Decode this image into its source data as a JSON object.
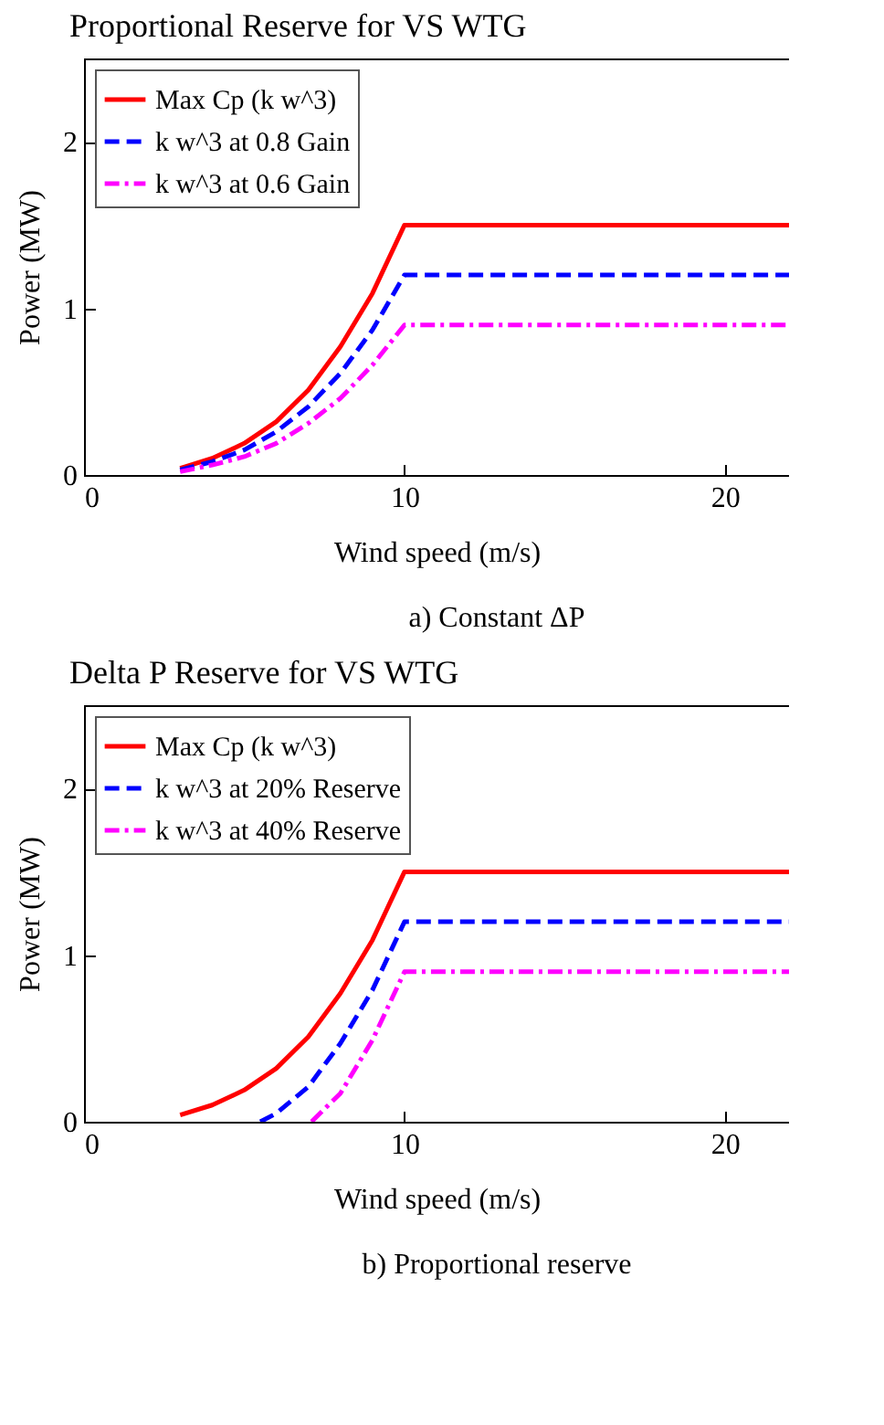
{
  "chart_data": [
    {
      "type": "line",
      "title": "Proportional Reserve for VS WTG",
      "xlabel": "Wind speed (m/s)",
      "ylabel": "Power (MW)",
      "annotations": [
        "a) Constant ΔP"
      ],
      "xlim": [
        0,
        22
      ],
      "ylim": [
        0,
        2.5
      ],
      "xticks": [
        0,
        10,
        20
      ],
      "yticks": [
        0,
        1,
        2
      ],
      "grid": false,
      "legend": "top left",
      "marker": "none",
      "series": [
        {
          "name": "Max Cp (k w^3)",
          "color": "#ff0000",
          "line_style": "solid",
          "x": [
            3,
            4,
            5,
            6,
            7,
            8,
            9,
            10,
            22
          ],
          "values": [
            0.04,
            0.1,
            0.19,
            0.32,
            0.51,
            0.77,
            1.09,
            1.5,
            1.5
          ]
        },
        {
          "name": "k w^3 at 0.8 Gain",
          "color": "#0000ff",
          "line_style": "dashed",
          "x": [
            3,
            4,
            5,
            6,
            7,
            8,
            9,
            10,
            22
          ],
          "values": [
            0.03,
            0.08,
            0.15,
            0.26,
            0.41,
            0.61,
            0.87,
            1.2,
            1.2
          ]
        },
        {
          "name": "k w^3 at 0.6 Gain",
          "color": "#ff00ff",
          "line_style": "dashdot",
          "x": [
            3,
            4,
            5,
            6,
            7,
            8,
            9,
            10,
            22
          ],
          "values": [
            0.02,
            0.06,
            0.11,
            0.19,
            0.31,
            0.46,
            0.66,
            0.9,
            0.9
          ]
        }
      ]
    },
    {
      "type": "line",
      "title": "Delta P Reserve for VS WTG",
      "xlabel": "Wind speed (m/s)",
      "ylabel": "Power (MW)",
      "annotations": [
        "b) Proportional reserve"
      ],
      "xlim": [
        0,
        22
      ],
      "ylim": [
        0,
        2.5
      ],
      "xticks": [
        0,
        10,
        20
      ],
      "yticks": [
        0,
        1,
        2
      ],
      "grid": false,
      "legend": "top left",
      "marker": "none",
      "series": [
        {
          "name": "Max Cp (k w^3)",
          "color": "#ff0000",
          "line_style": "solid",
          "x": [
            3,
            4,
            5,
            6,
            7,
            8,
            9,
            10,
            22
          ],
          "values": [
            0.04,
            0.1,
            0.19,
            0.32,
            0.51,
            0.77,
            1.09,
            1.5,
            1.5
          ]
        },
        {
          "name": "k w^3 at 20% Reserve",
          "color": "#0000ff",
          "line_style": "dashed",
          "x": [
            5.5,
            6,
            7,
            8,
            9,
            10,
            22
          ],
          "values": [
            0,
            0.05,
            0.21,
            0.47,
            0.79,
            1.2,
            1.2
          ]
        },
        {
          "name": "k w^3 at 40% Reserve",
          "color": "#ff00ff",
          "line_style": "dashdot",
          "x": [
            7.1,
            8,
            9,
            10,
            22
          ],
          "values": [
            0,
            0.17,
            0.49,
            0.9,
            0.9
          ]
        }
      ]
    }
  ]
}
